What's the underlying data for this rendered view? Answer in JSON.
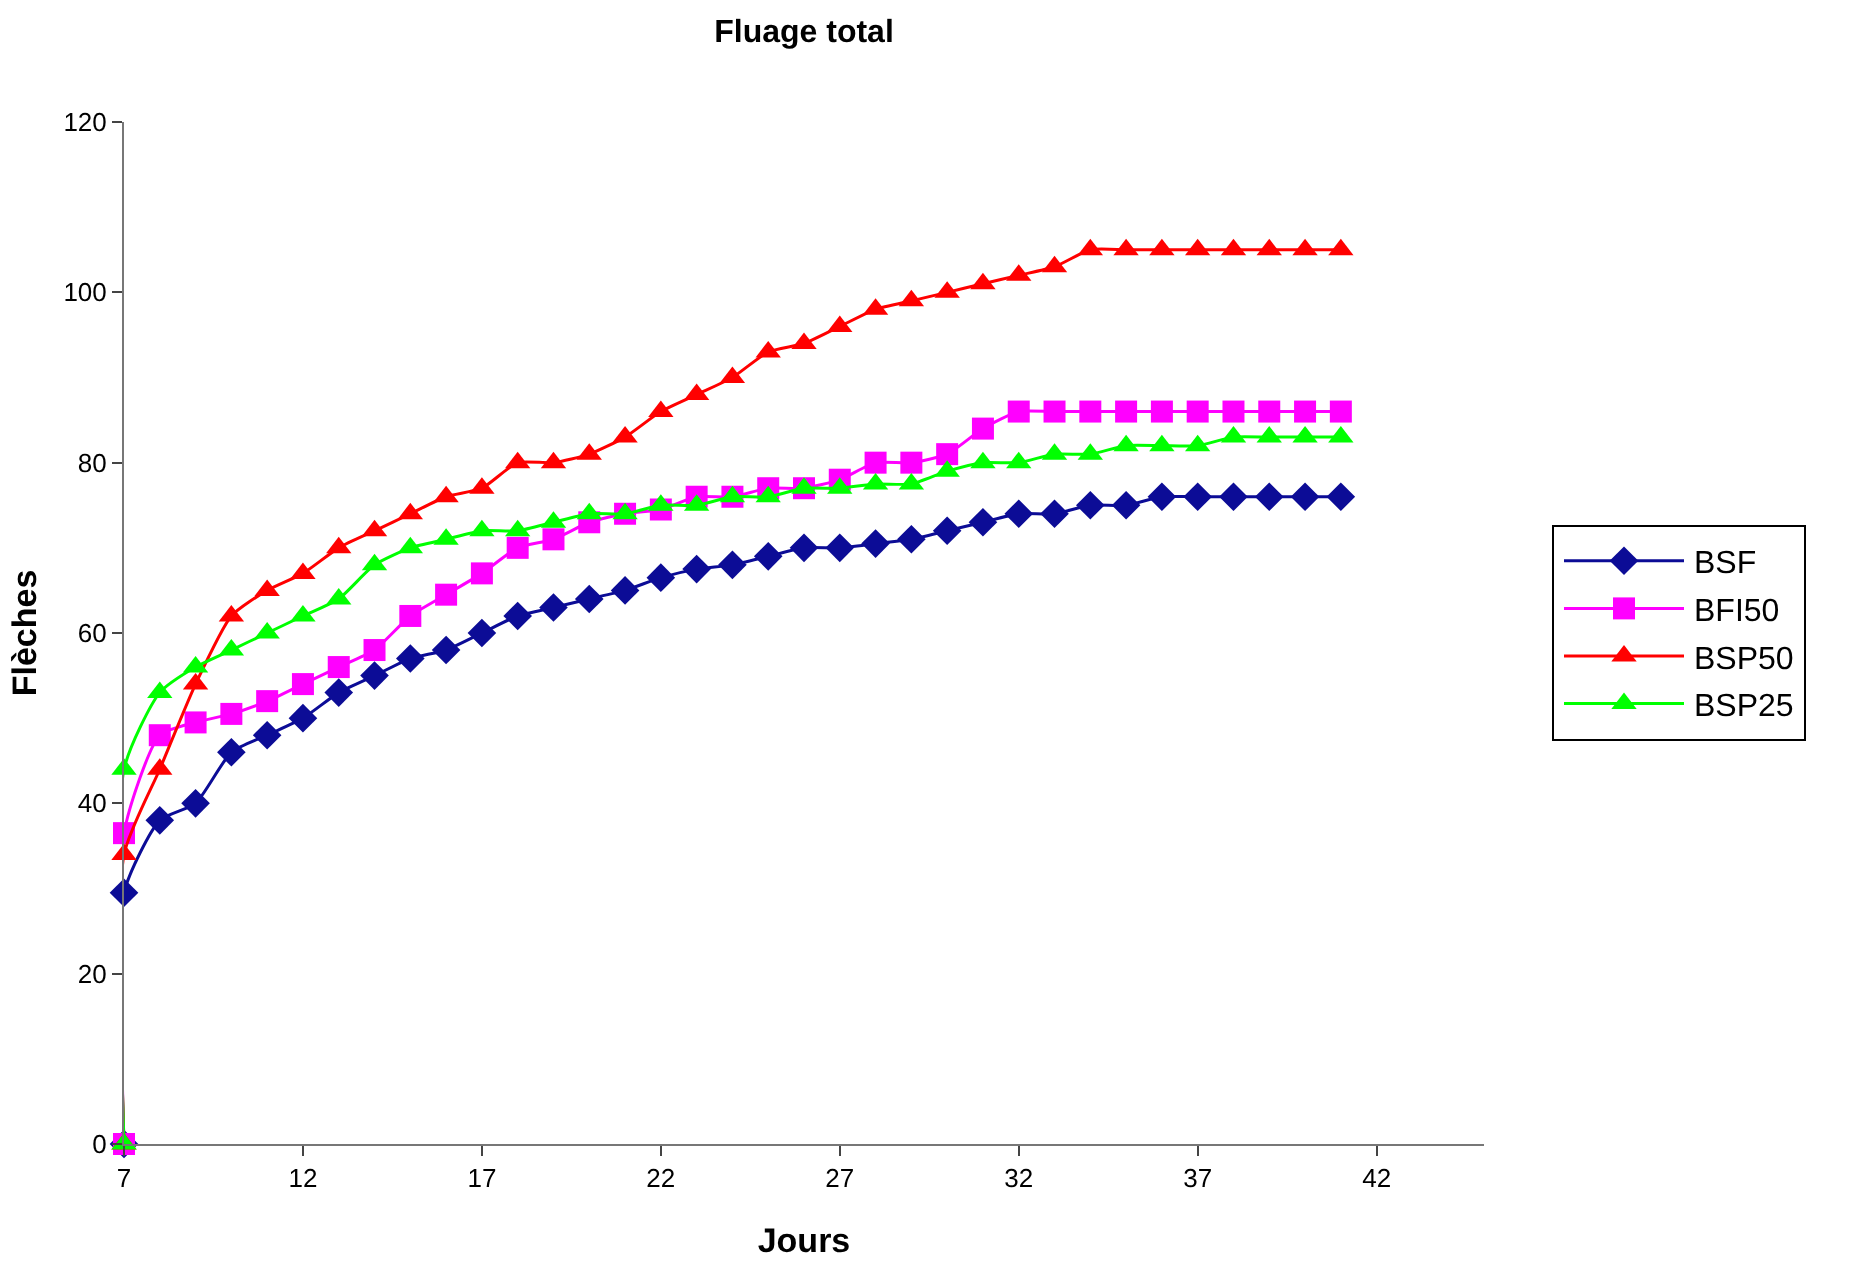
{
  "chart_data": {
    "type": "line",
    "title": "Fluage total",
    "xlabel": "Jours",
    "ylabel": "Flèches",
    "x": [
      7,
      7,
      8,
      9,
      10,
      11,
      12,
      13,
      14,
      15,
      16,
      17,
      18,
      19,
      20,
      21,
      22,
      23,
      24,
      25,
      26,
      27,
      28,
      29,
      30,
      31,
      32,
      33,
      34,
      35,
      36,
      37,
      38,
      39,
      40,
      41
    ],
    "series": [
      {
        "name": "BSF",
        "color": "#0c0c96",
        "marker": "diamond",
        "values": [
          0,
          29.5,
          38,
          40,
          46,
          48,
          50,
          53,
          55,
          57,
          58,
          60,
          62,
          63,
          64,
          65,
          66.5,
          67.5,
          68,
          69,
          70,
          70,
          70.5,
          71,
          72,
          73,
          74,
          74,
          75,
          75,
          76,
          76,
          76,
          76,
          76,
          76
        ]
      },
      {
        "name": "BFI50",
        "color": "#ff00ff",
        "marker": "square",
        "values": [
          0,
          36.5,
          48,
          49.5,
          50.5,
          52,
          54,
          56,
          58,
          62,
          64.5,
          67,
          70,
          71,
          73,
          74,
          74.5,
          76,
          76,
          77,
          77,
          78,
          80,
          80,
          81,
          84,
          86,
          86,
          86,
          86,
          86,
          86,
          86,
          86,
          86,
          86
        ]
      },
      {
        "name": "BSP50",
        "color": "#ff0000",
        "marker": "triangle",
        "values": [
          0,
          34,
          44,
          54,
          62,
          65,
          67,
          70,
          72,
          74,
          76,
          77,
          80,
          80,
          81,
          83,
          86,
          88,
          90,
          93,
          94,
          96,
          98,
          99,
          100,
          101,
          102,
          103,
          105,
          105,
          105,
          105,
          105,
          105,
          105,
          105
        ]
      },
      {
        "name": "BSP25",
        "color": "#00ff00",
        "marker": "triangle",
        "values": [
          0,
          44,
          53,
          56,
          58,
          60,
          62,
          64,
          68,
          70,
          71,
          72,
          72,
          73,
          74,
          74,
          75,
          75,
          76,
          76,
          77,
          77,
          77.5,
          77.5,
          79,
          80,
          80,
          81,
          81,
          82,
          82,
          82,
          83,
          83,
          83,
          83
        ]
      }
    ],
    "xlim": [
      7,
      45
    ],
    "xticks": [
      7,
      12,
      17,
      22,
      27,
      32,
      37,
      42
    ],
    "ylim": [
      0,
      120
    ],
    "yticks": [
      0,
      20,
      40,
      60,
      80,
      100,
      120
    ],
    "legend": "right",
    "line_style": "solid"
  }
}
